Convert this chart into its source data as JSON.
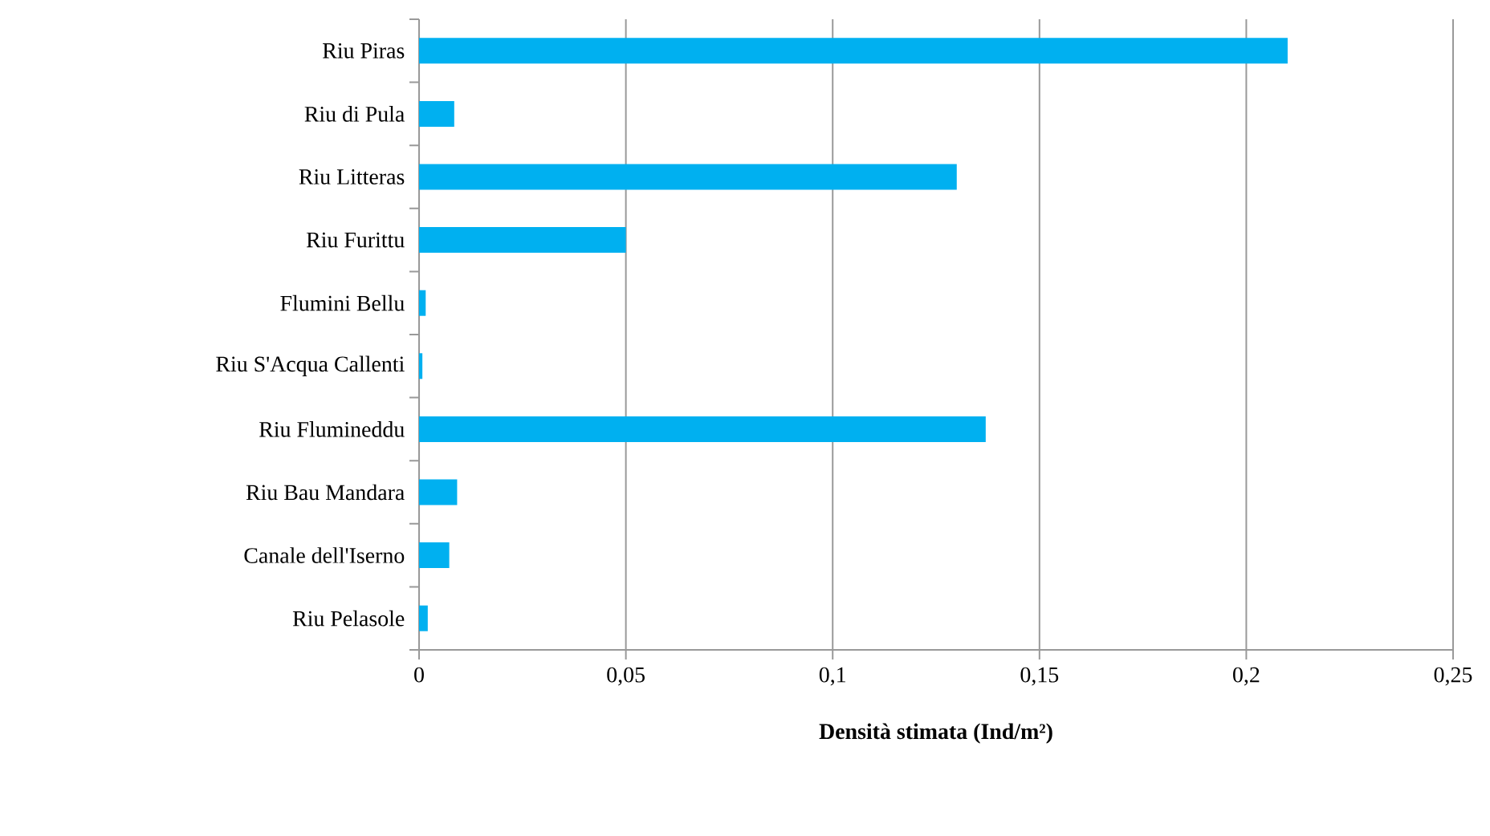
{
  "chart_data": {
    "type": "bar",
    "orientation": "horizontal",
    "xlabel": "Densità stimata (Ind/m²)",
    "categories": [
      "Riu Piras",
      "Riu di Pula",
      "Riu Litteras",
      "Riu Furittu",
      "Flumini Bellu",
      "Riu S'Acqua Callenti",
      "Riu Flumineddu",
      "Riu Bau Mandara",
      "Canale dell'Iserno",
      "Riu Pelasole"
    ],
    "values": [
      0.21,
      0.0085,
      0.13,
      0.05,
      0.0016,
      0.0008,
      0.137,
      0.0092,
      0.0073,
      0.0021
    ],
    "color": "#00b0f0",
    "xlim": [
      0,
      0.25
    ],
    "xticks": [
      0,
      {
        "value": 0.05,
        "label": "0,05"
      },
      {
        "value": 0.1,
        "label": "0,1"
      },
      {
        "value": 0.15,
        "label": "0,15"
      },
      {
        "value": 0.2,
        "label": "0,2"
      },
      {
        "value": 0.25,
        "label": "0,25"
      }
    ],
    "grid": "x"
  }
}
